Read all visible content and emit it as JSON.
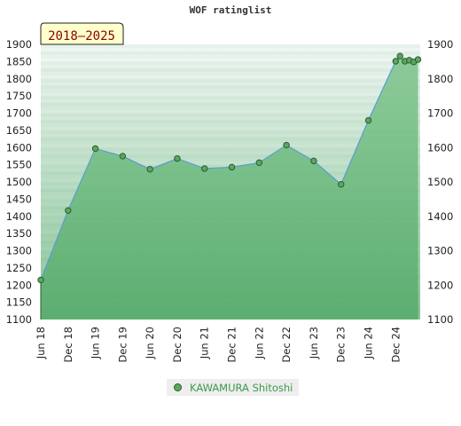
{
  "chart_data": {
    "type": "area",
    "title": "WOF ratinglist",
    "badge": "2018–2025",
    "xlabel": "",
    "ylabel": "",
    "ylim": [
      1100,
      1900
    ],
    "yticks": [
      1100,
      1150,
      1200,
      1250,
      1300,
      1350,
      1400,
      1450,
      1500,
      1550,
      1600,
      1650,
      1700,
      1750,
      1800,
      1850,
      1900
    ],
    "y2ticks": [
      1100,
      1200,
      1300,
      1400,
      1500,
      1600,
      1700,
      1800,
      1900
    ],
    "xlim": [
      2018.45,
      2025.4
    ],
    "xticks": [
      {
        "label": "Jun 18",
        "x": 2018.45
      },
      {
        "label": "Dec 18",
        "x": 2018.95
      },
      {
        "label": "Jun 19",
        "x": 2019.45
      },
      {
        "label": "Dec 19",
        "x": 2019.95
      },
      {
        "label": "Jun 20",
        "x": 2020.45
      },
      {
        "label": "Dec 20",
        "x": 2020.95
      },
      {
        "label": "Jun 21",
        "x": 2021.45
      },
      {
        "label": "Dec 21",
        "x": 2021.95
      },
      {
        "label": "Jun 22",
        "x": 2022.45
      },
      {
        "label": "Dec 22",
        "x": 2022.95
      },
      {
        "label": "Jun 23",
        "x": 2023.45
      },
      {
        "label": "Dec 23",
        "x": 2023.95
      },
      {
        "label": "Jun 24",
        "x": 2024.45
      },
      {
        "label": "Dec 24",
        "x": 2024.95
      }
    ],
    "grid": true,
    "legend_position": "bottom",
    "colors": {
      "line": "#5b9bd5",
      "marker": "#5aa860",
      "marker_edge": "#2e5a30",
      "badge_bg": "#ffffcc",
      "badge_text": "#8b0000"
    },
    "series": [
      {
        "name": "KAWAMURA Shitoshi",
        "points": [
          {
            "x": 2018.45,
            "y": 1215
          },
          {
            "x": 2018.95,
            "y": 1417
          },
          {
            "x": 2019.45,
            "y": 1597
          },
          {
            "x": 2019.95,
            "y": 1575
          },
          {
            "x": 2020.45,
            "y": 1537
          },
          {
            "x": 2020.95,
            "y": 1568
          },
          {
            "x": 2021.45,
            "y": 1539
          },
          {
            "x": 2021.95,
            "y": 1543
          },
          {
            "x": 2022.45,
            "y": 1556
          },
          {
            "x": 2022.95,
            "y": 1607
          },
          {
            "x": 2023.45,
            "y": 1561
          },
          {
            "x": 2023.95,
            "y": 1493
          },
          {
            "x": 2024.45,
            "y": 1679
          },
          {
            "x": 2024.95,
            "y": 1851
          },
          {
            "x": 2025.03,
            "y": 1866
          },
          {
            "x": 2025.12,
            "y": 1851
          },
          {
            "x": 2025.2,
            "y": 1854
          },
          {
            "x": 2025.28,
            "y": 1849
          },
          {
            "x": 2025.36,
            "y": 1856
          }
        ]
      }
    ]
  }
}
